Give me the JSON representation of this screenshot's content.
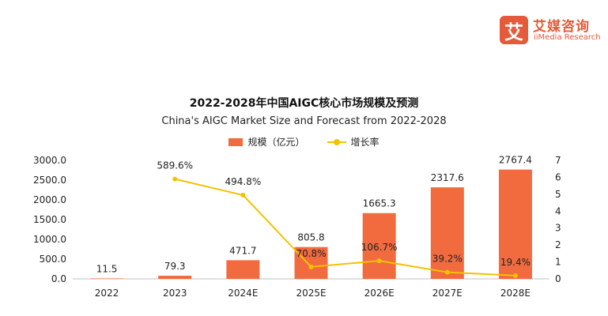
{
  "brand": {
    "mark": "艾",
    "name_cn": "艾媒咨询",
    "name_en": "iiMedia Research"
  },
  "chart_data": {
    "type": "bar",
    "title": "2022-2028年中国AIGC核心市场规模及预测",
    "subtitle": "China's AIGC Market Size and Forecast from 2022-2028",
    "categories": [
      "2022",
      "2023",
      "2024E",
      "2025E",
      "2026E",
      "2027E",
      "2028E"
    ],
    "series": [
      {
        "name": "规模（亿元）",
        "type": "bar",
        "axis": "left",
        "color": "#f26b3f",
        "values": [
          11.5,
          79.3,
          471.7,
          805.8,
          1665.3,
          2317.6,
          2767.4
        ],
        "labels": [
          "11.5",
          "79.3",
          "471.7",
          "805.8",
          "1665.3",
          "2317.6",
          "2767.4"
        ]
      },
      {
        "name": "增长率",
        "type": "line",
        "axis": "right",
        "color": "#f2c200",
        "values": [
          null,
          5.896,
          4.948,
          0.708,
          1.067,
          0.392,
          0.194
        ],
        "labels": [
          null,
          "589.6%",
          "494.8%",
          "70.8%",
          "106.7%",
          "39.2%",
          "19.4%"
        ]
      }
    ],
    "y_left": {
      "range": [
        0,
        3000
      ],
      "ticks": [
        "0.0",
        "500.0",
        "1000.0",
        "1500.0",
        "2000.0",
        "2500.0",
        "3000.0"
      ]
    },
    "y_right": {
      "range": [
        0,
        7
      ],
      "ticks": [
        "0",
        "1",
        "2",
        "3",
        "4",
        "5",
        "6",
        "7"
      ]
    },
    "grid": false,
    "legend_position": "top-center"
  }
}
